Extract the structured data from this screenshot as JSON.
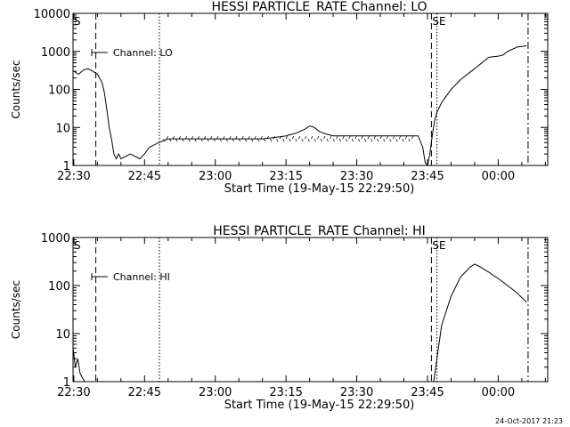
{
  "footer": {
    "timestamp": "24-Oct-2017 21:23"
  },
  "chart_data": [
    {
      "type": "line",
      "title": "HESSI PARTICLE_RATE Channel: LO",
      "xlabel": "Start Time (19-May-15 22:29:50)",
      "ylabel": "Counts/sec",
      "yscale": "log",
      "xlim": [
        "22:29:50",
        "00:10:30"
      ],
      "ylim": [
        1,
        10000
      ],
      "x_ticks": [
        "22:30",
        "22:45",
        "23:00",
        "23:15",
        "23:30",
        "23:45",
        "00:00"
      ],
      "y_ticks": [
        "1",
        "10",
        "100",
        "1000",
        "10000"
      ],
      "legend": {
        "position": "top-left",
        "label": "Channel: LO"
      },
      "markers": [
        {
          "time": "22:29:50",
          "label": "S",
          "style": "none"
        },
        {
          "time": "22:34:40",
          "label": "",
          "style": "dashed"
        },
        {
          "time": "22:48:10",
          "label": "",
          "style": "dotted"
        },
        {
          "time": "23:45:50",
          "label": "SE",
          "style": "dashed"
        },
        {
          "time": "23:47:00",
          "label": "",
          "style": "dotted"
        },
        {
          "time": "00:06:20",
          "label": "",
          "style": "dashdot"
        }
      ],
      "series": [
        {
          "name": "Channel: LO",
          "x": [
            "22:30:00",
            "22:31:00",
            "22:32:00",
            "22:33:00",
            "22:34:00",
            "22:35:00",
            "22:36:00",
            "22:36:30",
            "22:37:00",
            "22:37:30",
            "22:38:00",
            "22:38:30",
            "22:39:00",
            "22:39:30",
            "22:40:00",
            "22:42:00",
            "22:44:00",
            "22:45:00",
            "22:46:00",
            "22:48:00",
            "22:50:00",
            "22:55:00",
            "23:00:00",
            "23:05:00",
            "23:10:00",
            "23:13:00",
            "23:15:00",
            "23:17:00",
            "23:19:00",
            "23:20:00",
            "23:21:00",
            "23:22:00",
            "23:23:00",
            "23:25:00",
            "23:30:00",
            "23:35:00",
            "23:40:00",
            "23:43:00",
            "23:44:00",
            "23:44:30",
            "23:45:00",
            "23:45:30",
            "23:46:00",
            "23:46:30",
            "23:47:00",
            "23:48:00",
            "23:50:00",
            "23:52:00",
            "23:55:00",
            "23:58:00",
            "00:00:00",
            "00:01:00",
            "00:02:00",
            "00:04:00",
            "00:06:00"
          ],
          "y": [
            300,
            250,
            320,
            350,
            300,
            250,
            150,
            80,
            30,
            10,
            5,
            2,
            1.5,
            2,
            1.5,
            2,
            1.5,
            2,
            3,
            4,
            5,
            5,
            5,
            5,
            5,
            5.5,
            6,
            7,
            9,
            11,
            10,
            8,
            7,
            6,
            6,
            6,
            6,
            6,
            3,
            1.2,
            1,
            2,
            6,
            15,
            25,
            45,
            100,
            180,
            350,
            700,
            750,
            800,
            1000,
            1300,
            1400
          ]
        }
      ]
    },
    {
      "type": "line",
      "title": "HESSI PARTICLE_RATE Channel: HI",
      "xlabel": "Start Time (19-May-15 22:29:50)",
      "ylabel": "Counts/sec",
      "yscale": "log",
      "xlim": [
        "22:29:50",
        "00:10:30"
      ],
      "ylim": [
        1,
        1000
      ],
      "x_ticks": [
        "22:30",
        "22:45",
        "23:00",
        "23:15",
        "23:30",
        "23:45",
        "00:00"
      ],
      "y_ticks": [
        "1",
        "10",
        "100",
        "1000"
      ],
      "legend": {
        "position": "top-left",
        "label": "Channel: HI"
      },
      "markers": [
        {
          "time": "22:29:50",
          "label": "S",
          "style": "none"
        },
        {
          "time": "22:34:40",
          "label": "",
          "style": "dashed"
        },
        {
          "time": "22:48:10",
          "label": "",
          "style": "dotted"
        },
        {
          "time": "23:45:50",
          "label": "SE",
          "style": "dashed"
        },
        {
          "time": "23:47:00",
          "label": "",
          "style": "dotted"
        },
        {
          "time": "00:06:20",
          "label": "",
          "style": "dashdot"
        }
      ],
      "series": [
        {
          "name": "Channel: HI",
          "x": [
            "22:29:50",
            "22:30:20",
            "22:30:50",
            "22:31:20",
            "22:31:50",
            "22:32:20",
            "23:46:20",
            "23:47:00",
            "23:48:00",
            "23:50:00",
            "23:52:00",
            "23:54:00",
            "23:55:00",
            "23:56:00",
            "23:58:00",
            "00:00:00",
            "00:02:00",
            "00:04:00",
            "00:06:00"
          ],
          "y": [
            5,
            2,
            3,
            1.5,
            1.2,
            1,
            1,
            3,
            15,
            60,
            150,
            240,
            280,
            250,
            190,
            140,
            100,
            70,
            45
          ]
        }
      ]
    }
  ]
}
